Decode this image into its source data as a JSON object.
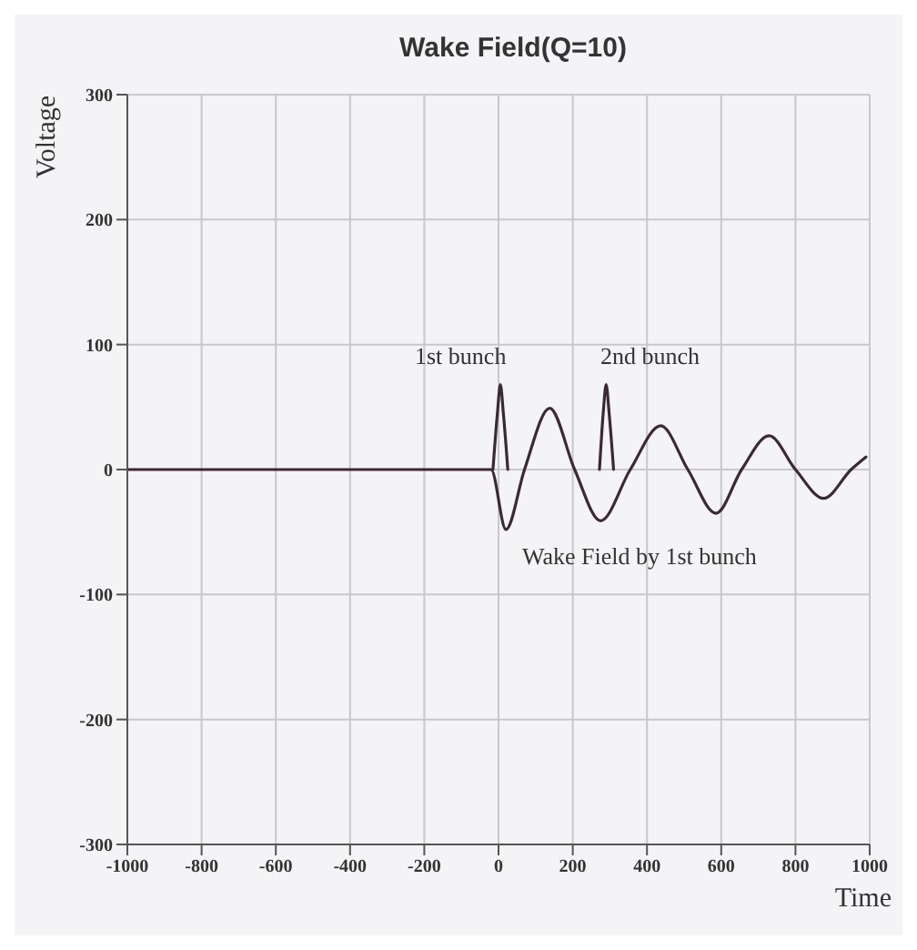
{
  "chart_data": {
    "type": "line",
    "title": "Wake Field(Q=10)",
    "xlabel": "Time",
    "ylabel": "Voltage",
    "xlim": [
      -1000,
      1000
    ],
    "xticks": [
      -1000,
      -800,
      -600,
      -400,
      -200,
      0,
      200,
      400,
      600,
      800,
      1000
    ],
    "ylim": [
      -300,
      300
    ],
    "yticks": [
      -300,
      -200,
      -100,
      0,
      100,
      200,
      300
    ],
    "grid": true,
    "marker": "none",
    "line_style": "solid",
    "series": [
      {
        "color": "#3a2a32",
        "x": [
          -1000,
          -20,
          20,
          70,
          138,
          205,
          275,
          355,
          437,
          510,
          586,
          655,
          729,
          800,
          876,
          950,
          990
        ],
        "values": [
          0,
          0,
          -48,
          0,
          49,
          0,
          -41,
          0,
          35,
          0,
          -35,
          0,
          27,
          0,
          -23,
          0,
          10
        ]
      },
      {
        "color": "#3a2a32",
        "x": [
          -15,
          -3,
          5,
          13,
          25,
          150,
          272,
          282,
          290,
          298,
          310
        ],
        "values": [
          0,
          45,
          68,
          45,
          0,
          null,
          0,
          45,
          68,
          45,
          0
        ]
      }
    ],
    "annotations": [
      "1st bunch",
      "2nd bunch",
      "Wake Field by 1st bunch"
    ]
  }
}
